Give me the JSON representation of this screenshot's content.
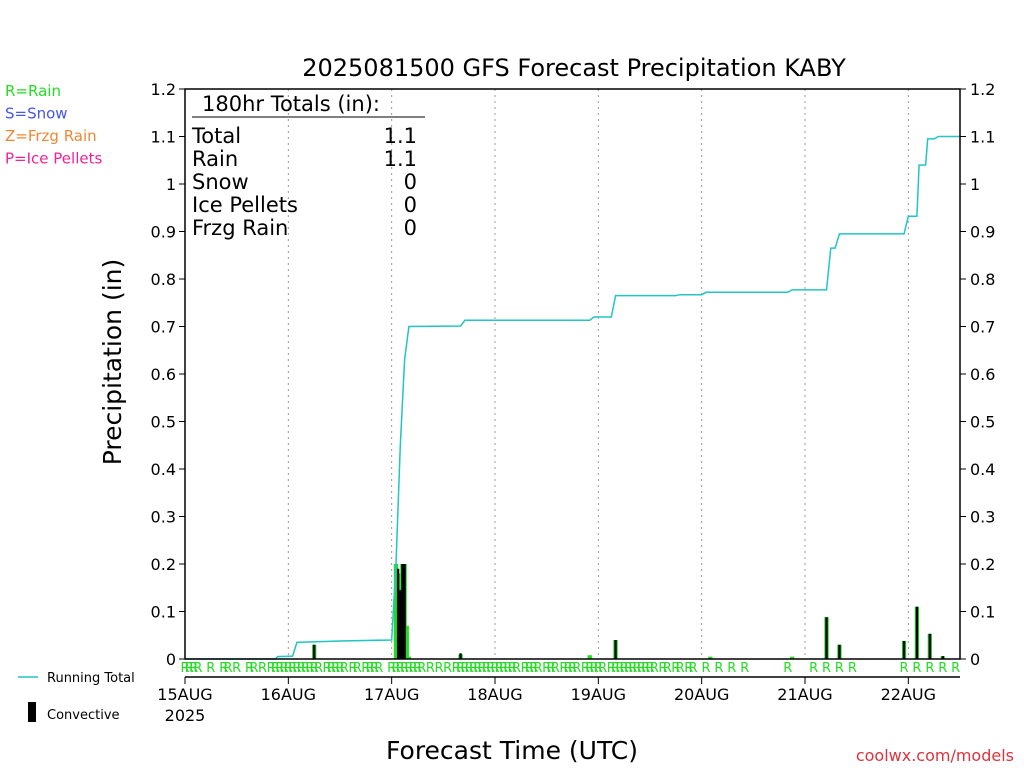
{
  "chart_data": {
    "type": "bar",
    "title": "2025081500 GFS Forecast Precipitation KABY",
    "xlabel": "Forecast Time (UTC)",
    "ylabel": "Precipitation (in)",
    "ylim": [
      0,
      1.2
    ],
    "y_ticks": [
      "0",
      "0.1",
      "0.2",
      "0.3",
      "0.4",
      "0.5",
      "0.6",
      "0.7",
      "0.8",
      "0.9",
      "1",
      "1.1",
      "1.2"
    ],
    "x_range_hours": [
      0,
      180
    ],
    "x_ticks": [
      {
        "hour": 0,
        "label": "15AUG"
      },
      {
        "hour": 24,
        "label": "16AUG"
      },
      {
        "hour": 48,
        "label": "17AUG"
      },
      {
        "hour": 72,
        "label": "18AUG"
      },
      {
        "hour": 96,
        "label": "19AUG"
      },
      {
        "hour": 120,
        "label": "20AUG"
      },
      {
        "hour": 144,
        "label": "21AUG"
      },
      {
        "hour": 168,
        "label": "22AUG"
      }
    ],
    "year_label": "2025",
    "grid": "vertical dotted at each day",
    "legend_position": "left outside",
    "precip_type_legend": [
      {
        "label": "R=Rain",
        "color": "#22dd22"
      },
      {
        "label": "S=Snow",
        "color": "#4455ee"
      },
      {
        "label": "Z=Frzg Rain",
        "color": "#ee8833"
      },
      {
        "label": "P=Ice Pellets",
        "color": "#ee2299"
      }
    ],
    "series_legend": [
      {
        "label": "Running Total",
        "color": "#22c4c4",
        "kind": "line"
      },
      {
        "label": "Convective",
        "color": "#000000",
        "kind": "bar"
      }
    ],
    "running_total": {
      "name": "Running Total",
      "color": "#22c4c4",
      "points": [
        [
          0,
          0
        ],
        [
          21,
          0
        ],
        [
          21.5,
          0.005
        ],
        [
          25,
          0.006
        ],
        [
          26,
          0.035
        ],
        [
          36,
          0.038
        ],
        [
          48,
          0.04
        ],
        [
          49,
          0.2
        ],
        [
          50,
          0.45
        ],
        [
          51,
          0.63
        ],
        [
          52,
          0.7
        ],
        [
          64,
          0.701
        ],
        [
          65,
          0.713
        ],
        [
          94,
          0.713
        ],
        [
          95,
          0.72
        ],
        [
          99,
          0.72
        ],
        [
          100,
          0.765
        ],
        [
          114,
          0.765
        ],
        [
          115,
          0.767
        ],
        [
          120,
          0.767
        ],
        [
          121,
          0.772
        ],
        [
          140,
          0.772
        ],
        [
          141,
          0.777
        ],
        [
          149,
          0.777
        ],
        [
          150,
          0.865
        ],
        [
          151,
          0.865
        ],
        [
          152,
          0.895
        ],
        [
          167,
          0.895
        ],
        [
          168,
          0.932
        ],
        [
          170,
          0.932
        ],
        [
          170.5,
          1.04
        ],
        [
          172,
          1.04
        ],
        [
          172.5,
          1.095
        ],
        [
          174,
          1.095
        ],
        [
          175,
          1.1
        ],
        [
          180,
          1.1
        ]
      ]
    },
    "precip_bars": {
      "name": "Precipitation",
      "color": "#22dd22",
      "points": [
        [
          30,
          0.03
        ],
        [
          49,
          0.2
        ],
        [
          49.5,
          0.18
        ],
        [
          50,
          0.15
        ],
        [
          50.5,
          0.2
        ],
        [
          51,
          0.2
        ],
        [
          51.5,
          0.07
        ],
        [
          52,
          0.005
        ],
        [
          64,
          0.01
        ],
        [
          94,
          0.008
        ],
        [
          100,
          0.04
        ],
        [
          122,
          0.005
        ],
        [
          141,
          0.005
        ],
        [
          149,
          0.088
        ],
        [
          152,
          0.03
        ],
        [
          167,
          0.038
        ],
        [
          170,
          0.11
        ],
        [
          173,
          0.053
        ],
        [
          176,
          0.006
        ]
      ]
    },
    "convective_bars": {
      "name": "Convective",
      "color": "#000000",
      "points": [
        [
          30,
          0.03
        ],
        [
          49.5,
          0.19
        ],
        [
          50,
          0.145
        ],
        [
          50.5,
          0.2
        ],
        [
          51,
          0.2
        ],
        [
          64,
          0.012
        ],
        [
          100,
          0.04
        ],
        [
          149,
          0.088
        ],
        [
          152,
          0.03
        ],
        [
          167,
          0.038
        ],
        [
          170,
          0.11
        ],
        [
          173,
          0.053
        ],
        [
          176,
          0.006
        ]
      ]
    },
    "type_markers": {
      "symbol": "R",
      "hours": [
        0,
        1,
        2,
        3,
        6,
        9,
        10,
        12,
        15,
        16,
        18,
        20,
        21,
        22,
        23,
        24,
        25,
        26,
        27,
        28,
        29,
        30,
        31,
        33,
        34,
        35,
        36,
        37,
        39,
        40,
        42,
        43,
        44,
        45,
        48,
        49,
        50,
        51,
        52,
        53,
        54,
        55,
        57,
        59,
        61,
        63,
        64,
        65,
        66,
        67,
        68,
        69,
        70,
        71,
        72,
        73,
        74,
        75,
        76,
        77,
        79,
        80,
        81,
        82,
        84,
        85,
        86,
        88,
        89,
        90,
        91,
        93,
        94,
        95,
        96,
        97,
        99,
        100,
        101,
        102,
        103,
        104,
        105,
        106,
        107,
        108,
        109,
        111,
        112,
        114,
        115,
        117,
        118,
        121,
        124,
        127,
        130,
        140,
        146,
        149,
        152,
        155,
        167,
        170,
        173,
        176,
        179
      ]
    },
    "totals_box": {
      "heading": "180hr Totals (in):",
      "rows": [
        {
          "label": "Total",
          "value": "1.1"
        },
        {
          "label": "Rain",
          "value": "1.1"
        },
        {
          "label": "Snow",
          "value": "0"
        },
        {
          "label": "Ice Pellets",
          "value": "0"
        },
        {
          "label": "Frzg Rain",
          "value": "0"
        }
      ]
    }
  },
  "credit": "coolwx.com/models"
}
